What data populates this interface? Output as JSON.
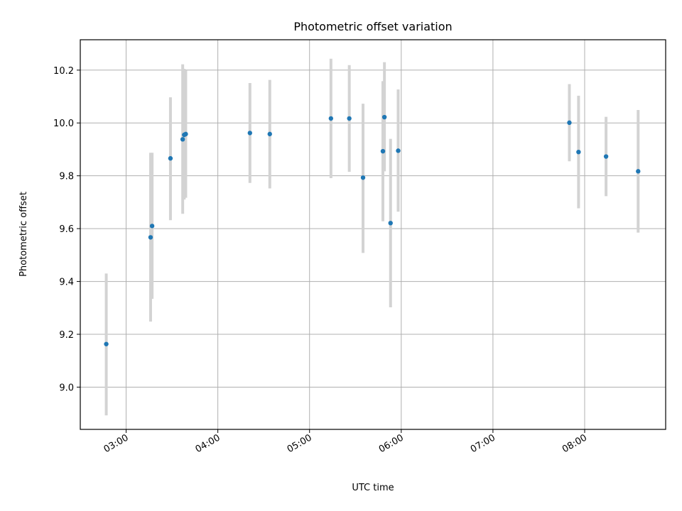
{
  "chart_data": {
    "type": "scatter",
    "title": "Photometric offset variation",
    "xlabel": "UTC time",
    "ylabel": "Photometric offset",
    "xlim": [
      "02:30",
      "08:53"
    ],
    "ylim": [
      8.84,
      10.315
    ],
    "grid": true,
    "x_ticks": [
      "03:00",
      "04:00",
      "05:00",
      "06:00",
      "07:00",
      "08:00"
    ],
    "y_ticks": [
      9.0,
      9.2,
      9.4,
      9.6,
      9.8,
      10.0,
      10.2
    ],
    "point_color": "#1f77b4",
    "errorbar_color": "#d3d3d3",
    "points": [
      {
        "x": "02:47",
        "y": 9.163,
        "lo": 8.893,
        "hi": 9.43
      },
      {
        "x": "03:16",
        "y": 9.567,
        "lo": 9.248,
        "hi": 9.887
      },
      {
        "x": "03:17",
        "y": 9.61,
        "lo": 9.334,
        "hi": 9.887
      },
      {
        "x": "03:29",
        "y": 9.866,
        "lo": 9.632,
        "hi": 10.097
      },
      {
        "x": "03:37",
        "y": 9.938,
        "lo": 9.656,
        "hi": 10.222
      },
      {
        "x": "03:38",
        "y": 9.955,
        "lo": 9.71,
        "hi": 10.205
      },
      {
        "x": "03:39",
        "y": 9.958,
        "lo": 9.717,
        "hi": 10.199
      },
      {
        "x": "04:21",
        "y": 9.962,
        "lo": 9.773,
        "hi": 10.151
      },
      {
        "x": "04:34",
        "y": 9.958,
        "lo": 9.752,
        "hi": 10.163
      },
      {
        "x": "05:14",
        "y": 10.017,
        "lo": 9.791,
        "hi": 10.243
      },
      {
        "x": "05:26",
        "y": 10.017,
        "lo": 9.815,
        "hi": 10.219
      },
      {
        "x": "05:35",
        "y": 9.793,
        "lo": 9.508,
        "hi": 10.073
      },
      {
        "x": "05:48",
        "y": 9.893,
        "lo": 9.628,
        "hi": 10.158
      },
      {
        "x": "05:49",
        "y": 10.022,
        "lo": 9.817,
        "hi": 10.23
      },
      {
        "x": "05:53",
        "y": 9.621,
        "lo": 9.302,
        "hi": 9.94
      },
      {
        "x": "05:58",
        "y": 9.895,
        "lo": 9.664,
        "hi": 10.127
      },
      {
        "x": "07:50",
        "y": 10.001,
        "lo": 9.855,
        "hi": 10.147
      },
      {
        "x": "07:56",
        "y": 9.89,
        "lo": 9.677,
        "hi": 10.103
      },
      {
        "x": "08:14",
        "y": 9.873,
        "lo": 9.723,
        "hi": 10.023
      },
      {
        "x": "08:35",
        "y": 9.817,
        "lo": 9.585,
        "hi": 10.049
      }
    ]
  }
}
